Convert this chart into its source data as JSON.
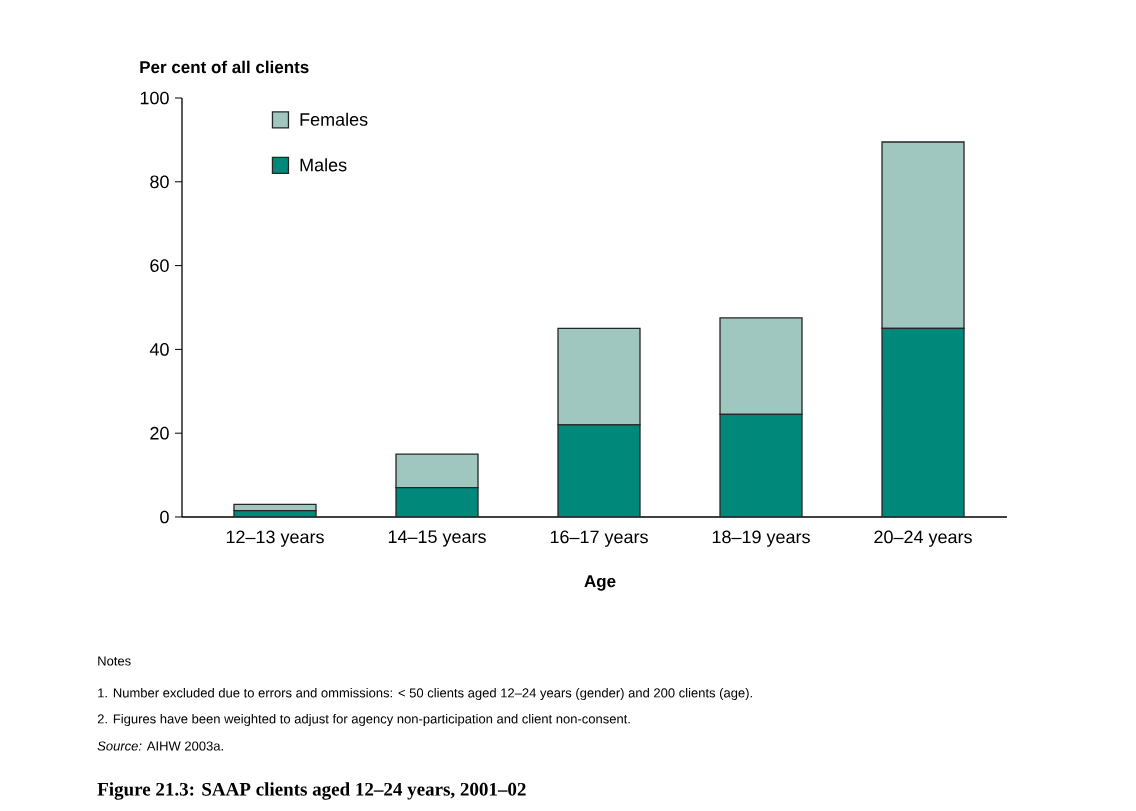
{
  "chart_data": {
    "type": "bar",
    "stacked": true,
    "title": "Figure 21.3: SAAP clients aged 12–24 years, 2001–02",
    "xlabel": "Age",
    "ylabel": "Per cent of all clients",
    "categories": [
      "12–13 years",
      "14–15 years",
      "16–17 years",
      "18–19 years",
      "20–24 years"
    ],
    "series": [
      {
        "name": "Males",
        "color": "#00897a",
        "values": [
          1.5,
          7,
          22,
          24.5,
          45
        ]
      },
      {
        "name": "Females",
        "color": "#9fc7bf",
        "values": [
          1.5,
          8,
          23,
          23,
          44.5
        ]
      }
    ],
    "ylim": [
      0,
      100
    ],
    "yticks": [
      0,
      20,
      40,
      60,
      80,
      100
    ],
    "legend": "top left",
    "annotations": [
      "Notes",
      "1. Number excluded due to errors and ommissions: < 50 clients aged 12–24 years (gender) and 200 clients (age).",
      "2. Figures have been weighted to adjust for agency non-participation and client non-consent.",
      "*Source:* AIHW 2003a."
    ]
  }
}
